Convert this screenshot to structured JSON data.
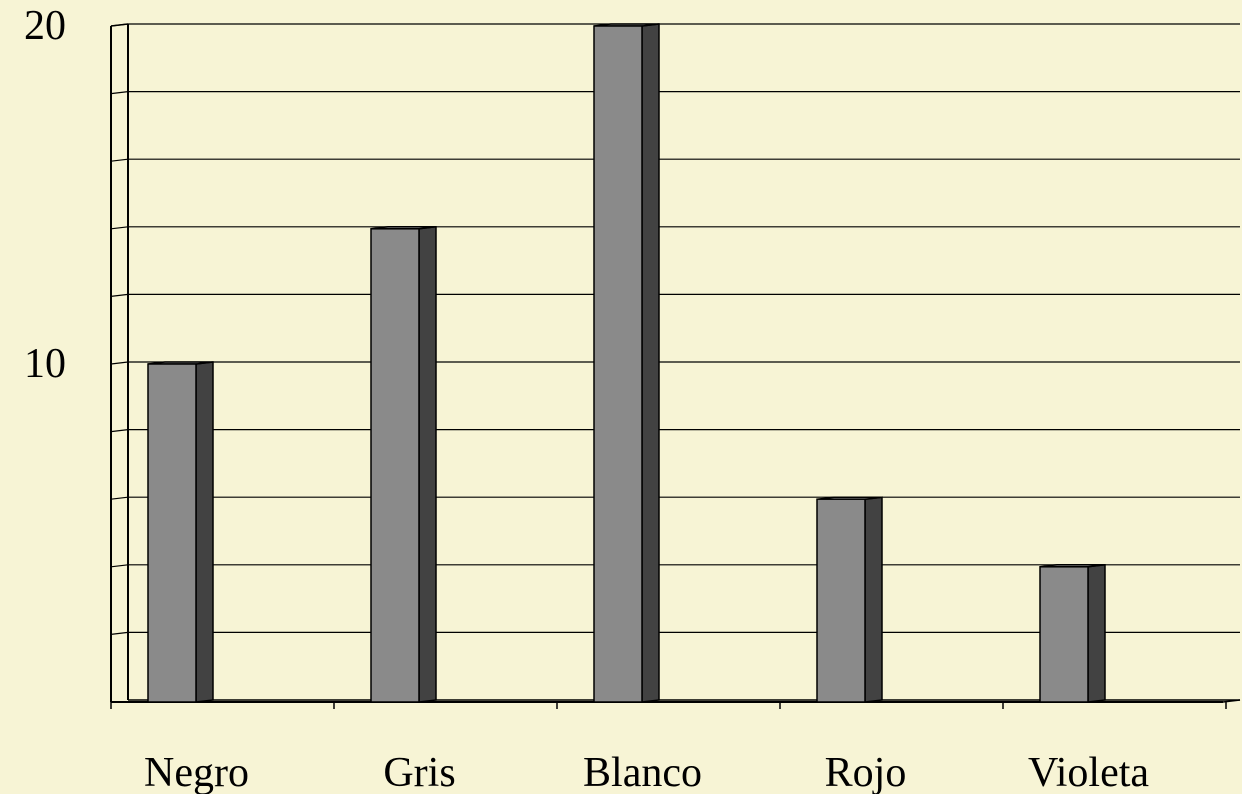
{
  "chart_data": {
    "type": "bar",
    "style": "3d-column",
    "categories": [
      "Negro",
      "Gris",
      "Blanco",
      "Rojo",
      "Violeta"
    ],
    "values": [
      10,
      14,
      20,
      6,
      4
    ],
    "ylim": [
      0,
      20
    ],
    "y_ticks_labeled": [
      "10",
      "20"
    ],
    "gridline_step": 2,
    "grid": true,
    "legend": "none",
    "title": "",
    "xlabel": "",
    "ylabel": ""
  },
  "colors": {
    "background": "#f7f4d5",
    "bar_front": "#8a8a8a",
    "bar_side": "#424242",
    "bar_top": "#9a9a9a",
    "axis": "#000000",
    "grid": "#000000"
  }
}
